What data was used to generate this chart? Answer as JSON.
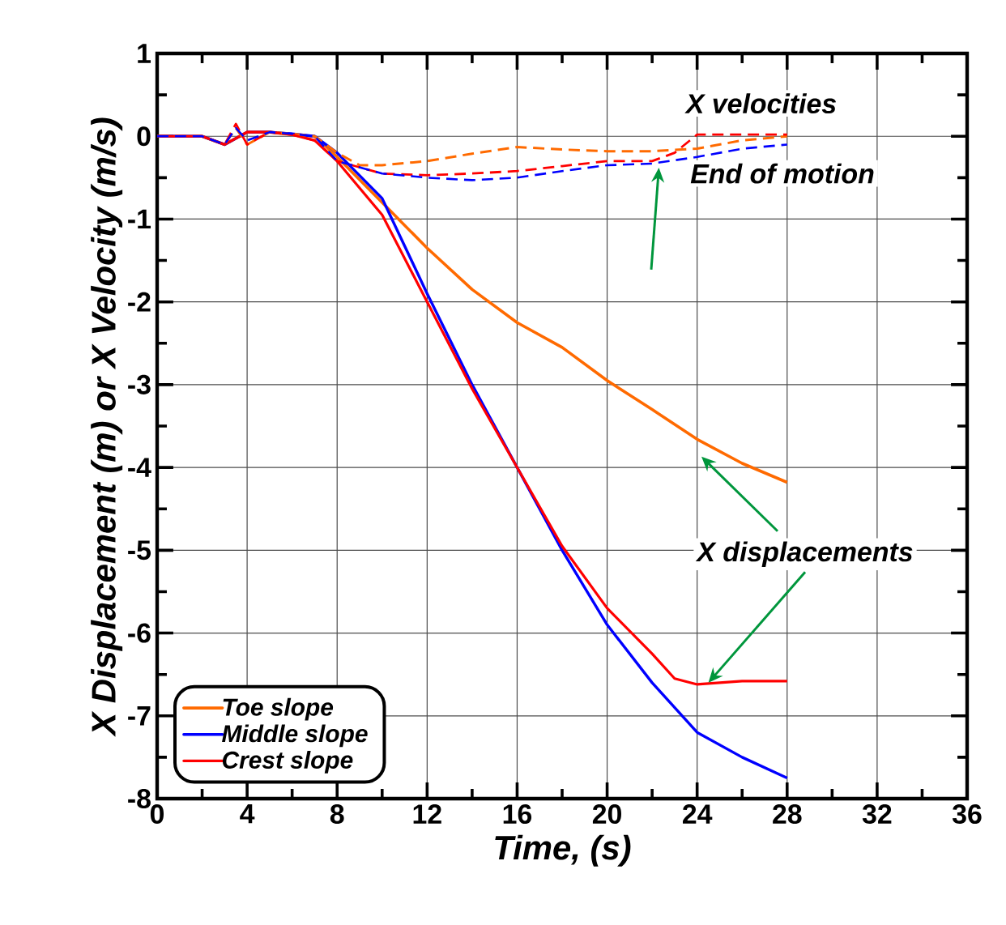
{
  "chart_data": {
    "type": "line",
    "xlabel": "Time, (s)",
    "ylabel": "X Displacement (m) or X Velocity (m/s)",
    "xlim": [
      0,
      36
    ],
    "xticks": [
      0,
      4,
      8,
      12,
      16,
      20,
      24,
      28,
      32,
      36
    ],
    "ylim": [
      -8,
      1
    ],
    "yticks": [
      -8,
      -7,
      -6,
      -5,
      -4,
      -3,
      -2,
      -1,
      0,
      1
    ],
    "grid": true,
    "legend": "bottom left",
    "series": [
      {
        "name": "Toe slope",
        "color": "#ff6a00",
        "line_style": "solid",
        "x": [
          0,
          2,
          3,
          4,
          5,
          6,
          7,
          8,
          10,
          12,
          14,
          16,
          18,
          20,
          22,
          24,
          26,
          28
        ],
        "values": [
          0,
          0,
          -0.1,
          0.05,
          0.05,
          0.02,
          0,
          -0.25,
          -0.8,
          -1.35,
          -1.85,
          -2.25,
          -2.55,
          -2.95,
          -3.3,
          -3.66,
          -3.95,
          -4.18
        ]
      },
      {
        "name": "Middle slope",
        "color": "#0000ff",
        "line_style": "solid",
        "x": [
          0,
          2,
          3,
          4,
          5,
          6,
          7,
          8,
          10,
          12,
          14,
          16,
          18,
          20,
          22,
          24,
          26,
          28
        ],
        "values": [
          0,
          0,
          -0.1,
          0.05,
          0.05,
          0.03,
          0,
          -0.2,
          -0.75,
          -1.9,
          -3.0,
          -4.0,
          -5.0,
          -5.9,
          -6.6,
          -7.2,
          -7.5,
          -7.75
        ]
      },
      {
        "name": "Crest slope",
        "color": "#ff0000",
        "line_style": "solid",
        "x": [
          0,
          2,
          3,
          4,
          5,
          6,
          7,
          8,
          10,
          12,
          14,
          16,
          18,
          20,
          22,
          23,
          24,
          26,
          28
        ],
        "values": [
          0,
          0,
          -0.1,
          0.05,
          0.05,
          0.02,
          -0.05,
          -0.3,
          -0.95,
          -2.0,
          -3.05,
          -4.0,
          -4.95,
          -5.7,
          -6.25,
          -6.55,
          -6.62,
          -6.58,
          -6.58
        ]
      },
      {
        "color": "#ff6a00",
        "line_style": "dashed",
        "x": [
          0,
          2,
          3,
          3.5,
          4,
          5,
          6,
          7,
          8,
          9,
          10,
          12,
          14,
          16,
          18,
          20,
          22,
          24,
          26,
          28
        ],
        "values": [
          0,
          0,
          -0.1,
          0.1,
          -0.1,
          0.05,
          0.03,
          0,
          -0.2,
          -0.35,
          -0.35,
          -0.3,
          -0.21,
          -0.13,
          -0.16,
          -0.18,
          -0.18,
          -0.15,
          -0.05,
          0
        ]
      },
      {
        "color": "#ff0000",
        "line_style": "dashed",
        "x": [
          0,
          2,
          3,
          3.5,
          4,
          5,
          6,
          7,
          8,
          10,
          12,
          14,
          16,
          18,
          20,
          22,
          23,
          24,
          26,
          28
        ],
        "values": [
          0,
          0,
          -0.1,
          0.15,
          -0.1,
          0.05,
          0.02,
          -0.05,
          -0.3,
          -0.45,
          -0.47,
          -0.45,
          -0.42,
          -0.36,
          -0.3,
          -0.3,
          -0.2,
          0.02,
          0.02,
          0.02
        ]
      },
      {
        "color": "#0000ff",
        "line_style": "dashed",
        "x": [
          0,
          2,
          3,
          3.5,
          4,
          5,
          6,
          7,
          8,
          10,
          12,
          14,
          16,
          18,
          20,
          22,
          24,
          26,
          28
        ],
        "values": [
          0,
          0,
          -0.1,
          0.1,
          -0.05,
          0.05,
          0.03,
          0,
          -0.3,
          -0.45,
          -0.5,
          -0.53,
          -0.5,
          -0.42,
          -0.35,
          -0.33,
          -0.25,
          -0.15,
          -0.1
        ]
      }
    ],
    "annotations": [
      "X velocities",
      {
        "text": "End of motion",
        "x": 22.3,
        "y": -0.38
      },
      {
        "text": "X displacements",
        "x": 24.5,
        "y": -6.6
      }
    ]
  }
}
